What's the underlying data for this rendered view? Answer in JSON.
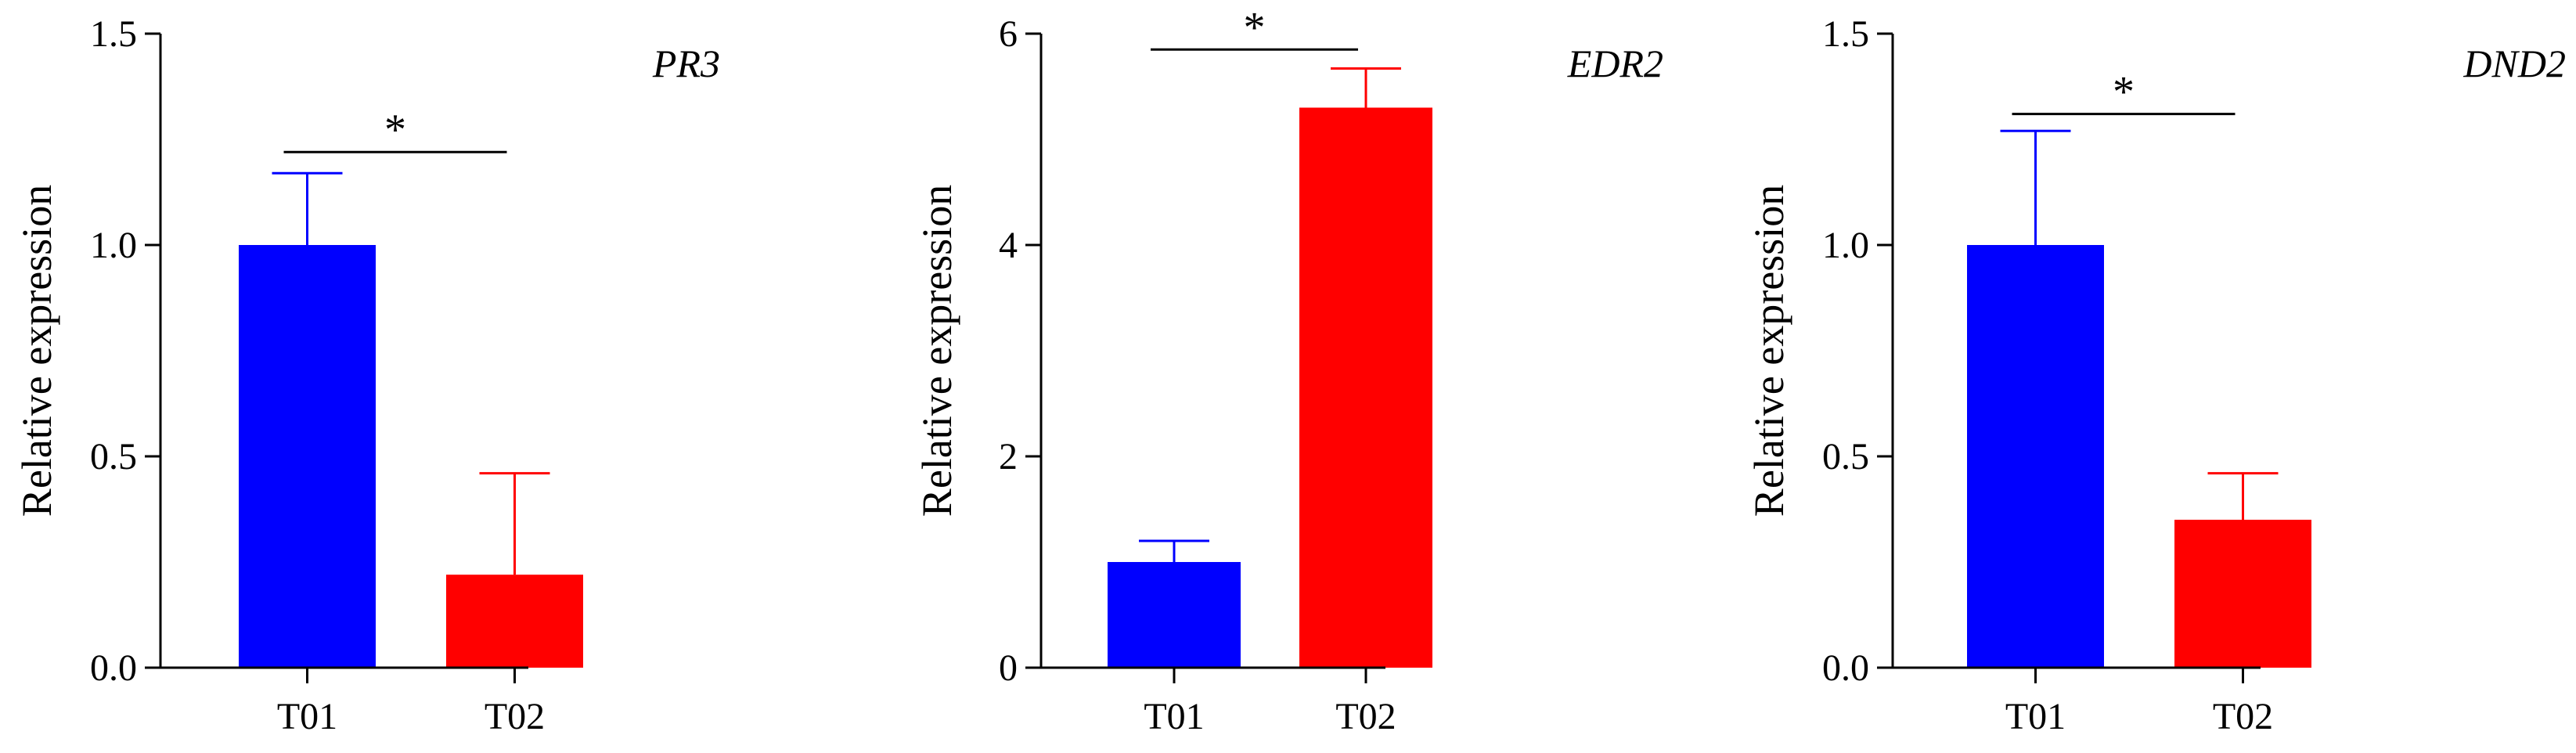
{
  "colors": {
    "T01": "#0000ff",
    "T02": "#ff0000",
    "axis": "#000000"
  },
  "chart_data": [
    {
      "type": "bar",
      "title": "PR3",
      "ylabel": "Relative expression",
      "categories": [
        "T01",
        "T02"
      ],
      "values": [
        1.0,
        0.22
      ],
      "errors": [
        0.17,
        0.24
      ],
      "ylim": [
        0,
        1.5
      ],
      "yticks": [
        0.0,
        0.5,
        1.0,
        1.5
      ],
      "ytick_labels": [
        "0.0",
        "0.5",
        "1.0",
        "1.5"
      ],
      "significance": {
        "label": "*",
        "y": 1.22
      },
      "grid": false
    },
    {
      "type": "bar",
      "title": "EDR2",
      "ylabel": "Relative expression",
      "categories": [
        "T01",
        "T02"
      ],
      "values": [
        1.0,
        5.3
      ],
      "errors": [
        0.2,
        0.37
      ],
      "ylim": [
        0,
        6
      ],
      "yticks": [
        0,
        2,
        4,
        6
      ],
      "ytick_labels": [
        "0",
        "2",
        "4",
        "6"
      ],
      "significance": {
        "label": "*",
        "y": 5.85
      },
      "grid": false
    },
    {
      "type": "bar",
      "title": "DND2",
      "ylabel": "Relative expression",
      "categories": [
        "T01",
        "T02"
      ],
      "values": [
        1.0,
        0.35
      ],
      "errors": [
        0.27,
        0.11
      ],
      "ylim": [
        0,
        1.5
      ],
      "yticks": [
        0.0,
        0.5,
        1.0,
        1.5
      ],
      "ytick_labels": [
        "0.0",
        "0.5",
        "1.0",
        "1.5"
      ],
      "significance": {
        "label": "*",
        "y": 1.31
      },
      "grid": false
    }
  ]
}
